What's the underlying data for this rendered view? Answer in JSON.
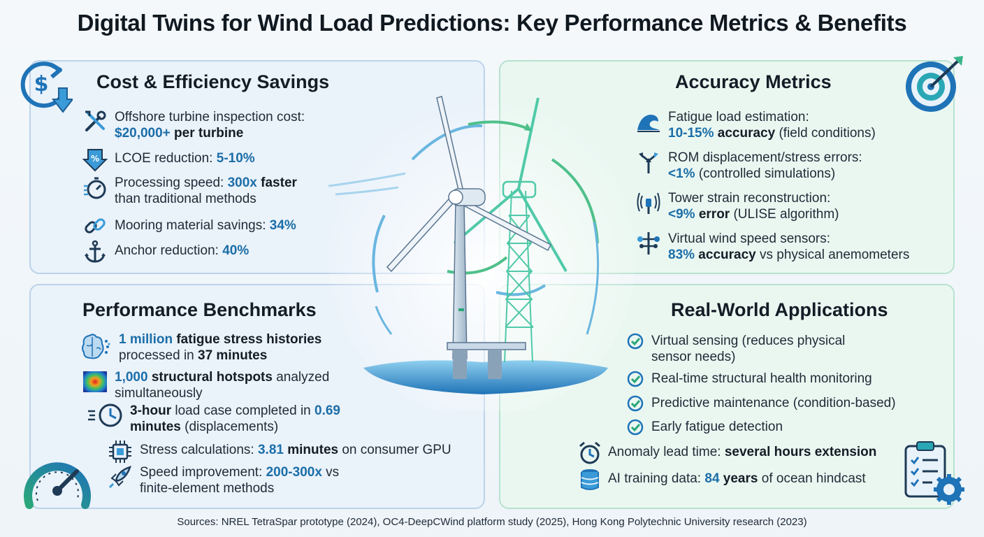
{
  "title": "Digital Twins for Wind Load Predictions: Key Performance Metrics & Benefits",
  "colors": {
    "accent_blue": "#1b6ea8",
    "accent_green": "#2aa77a",
    "panel_blue": "#eaf2fa",
    "panel_green": "#eaf7f1"
  },
  "cost": {
    "title": "Cost & Efficiency Savings",
    "icon": "dollar-down-icon",
    "items": [
      {
        "icon": "tools-icon",
        "line1": "Offshore turbine inspection cost:",
        "hl": "$20,000+",
        "rest": " per turbine"
      },
      {
        "icon": "percent-down-icon",
        "pre": "LCOE reduction: ",
        "hl": "5-10%"
      },
      {
        "icon": "stopwatch-icon",
        "pre": "Processing speed: ",
        "hl": "300x",
        "bold": " faster",
        "line2": "than traditional methods"
      },
      {
        "icon": "chain-icon",
        "pre": "Mooring material savings: ",
        "hl": "34%"
      },
      {
        "icon": "anchor-icon",
        "pre": "Anchor reduction: ",
        "hl": "40%"
      }
    ]
  },
  "accuracy": {
    "title": "Accuracy Metrics",
    "icon": "target-icon",
    "items": [
      {
        "icon": "wave-icon",
        "line1": "Fatigue load estimation:",
        "hl": "10-15%",
        "bold": " accuracy",
        "rest": " (field conditions)"
      },
      {
        "icon": "split-arrows-icon",
        "line1": "ROM displacement/stress errors:",
        "hl": "<1%",
        "rest": " (controlled simulations)"
      },
      {
        "icon": "sensor-icon",
        "line1": "Tower strain reconstruction:",
        "hl": "<9%",
        "bold": " error",
        "rest": " (ULISE algorithm)"
      },
      {
        "icon": "weather-vane-icon",
        "line1": "Virtual wind speed sensors:",
        "hl": "83%",
        "bold": " accuracy",
        "rest": " vs physical anemometers"
      }
    ]
  },
  "performance": {
    "title": "Performance Benchmarks",
    "icon": "gauge-icon",
    "items": [
      {
        "icon": "brain-icon",
        "hl": "1 million",
        "bold": " fatigue stress histories",
        "line2_pre": "processed in ",
        "line2_bold": "37 minutes"
      },
      {
        "icon": "heatmap-icon",
        "hl": "1,000",
        "bold": " structural hotspots",
        "rest": " analyzed",
        "line2": "simultaneously"
      },
      {
        "icon": "clock-icon",
        "bold": "3-hour",
        "rest": " load case completed in ",
        "hl": "0.69",
        "line2_bold": "minutes",
        "line2": " (displacements)"
      },
      {
        "icon": "chip-icon",
        "pre": "Stress calculations: ",
        "hl": "3.81",
        "bold": " minutes",
        "rest": " on consumer GPU"
      },
      {
        "icon": "rocket-icon",
        "pre": "Speed improvement: ",
        "hl": "200-300x",
        "rest": " vs",
        "line2": "finite-element methods"
      }
    ]
  },
  "applications": {
    "title": "Real-World Applications",
    "icon": "checklist-gear-icon",
    "checks": [
      {
        "line1": "Virtual sensing (reduces physical",
        "line2": "sensor needs)"
      },
      {
        "line1": "Real-time structural health monitoring"
      },
      {
        "line1": "Predictive maintenance (condition-based)"
      },
      {
        "line1": "Early fatigue detection"
      }
    ],
    "extras": [
      {
        "icon": "alarm-clock-icon",
        "pre": "Anomaly lead time: ",
        "bold": "several hours extension"
      },
      {
        "icon": "database-icon",
        "pre": "AI training data: ",
        "hl": "84",
        "bold": " years",
        "rest": " of ocean hindcast"
      }
    ]
  },
  "center": {
    "icon": "wind-turbine-digital-twin-icon"
  },
  "sources": "Sources: NREL TetraSpar prototype (2024), OC4-DeepCWind platform study (2025), Hong Kong Polytechnic University research (2023)"
}
